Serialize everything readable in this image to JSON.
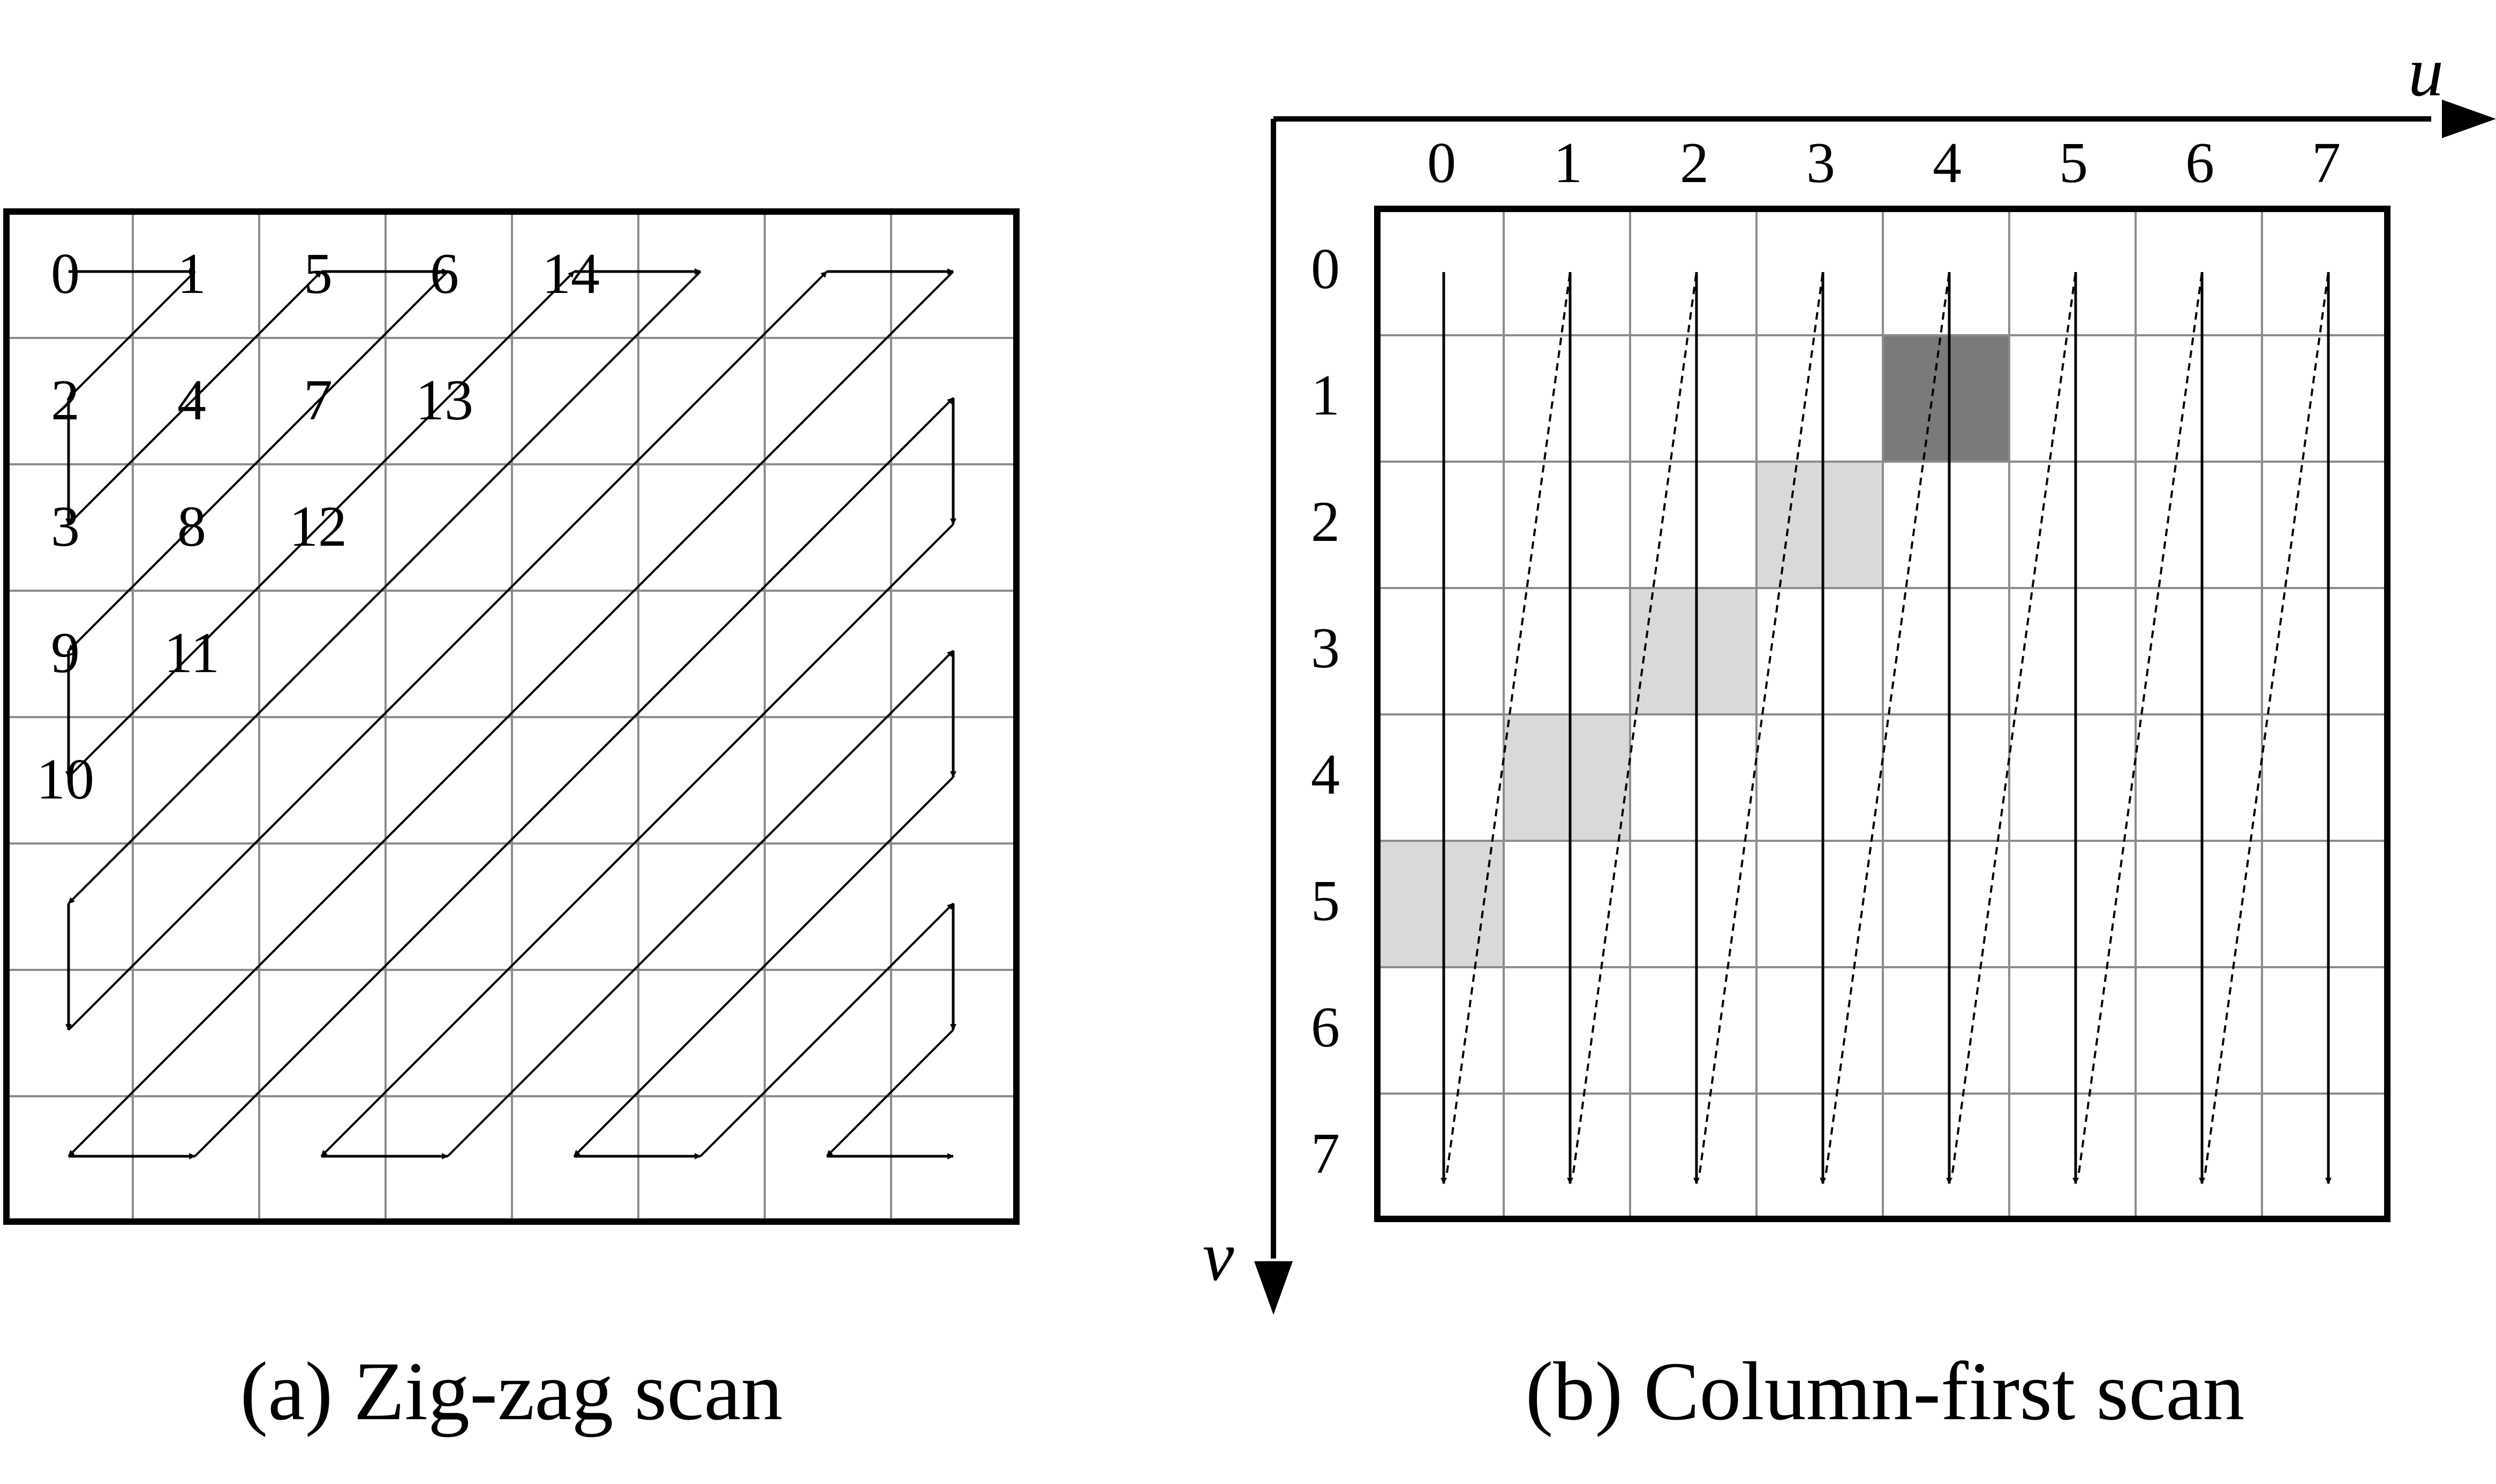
{
  "panel_a": {
    "caption": "(a) Zig-zag scan",
    "grid_size": 8,
    "cell_labels": [
      {
        "text": "0",
        "row": 0,
        "col": 0
      },
      {
        "text": "1",
        "row": 0,
        "col": 1
      },
      {
        "text": "5",
        "row": 0,
        "col": 2
      },
      {
        "text": "6",
        "row": 0,
        "col": 3
      },
      {
        "text": "14",
        "row": 0,
        "col": 4
      },
      {
        "text": "2",
        "row": 1,
        "col": 0
      },
      {
        "text": "4",
        "row": 1,
        "col": 1
      },
      {
        "text": "7",
        "row": 1,
        "col": 2
      },
      {
        "text": "13",
        "row": 1,
        "col": 3
      },
      {
        "text": "3",
        "row": 2,
        "col": 0
      },
      {
        "text": "8",
        "row": 2,
        "col": 1
      },
      {
        "text": "12",
        "row": 2,
        "col": 2
      },
      {
        "text": "9",
        "row": 3,
        "col": 0
      },
      {
        "text": "11",
        "row": 3,
        "col": 1
      },
      {
        "text": "10",
        "row": 4,
        "col": 0
      }
    ]
  },
  "panel_b": {
    "caption": "(b) Column-first scan",
    "axis_u_label": "u",
    "axis_v_label": "v",
    "column_labels": [
      "0",
      "1",
      "2",
      "3",
      "4",
      "5",
      "6",
      "7"
    ],
    "row_labels": [
      "0",
      "1",
      "2",
      "3",
      "4",
      "5",
      "6",
      "7"
    ],
    "highlighted_cells": [
      {
        "row": 1,
        "col": 4,
        "shade": "dark"
      },
      {
        "row": 2,
        "col": 3,
        "shade": "light"
      },
      {
        "row": 3,
        "col": 2,
        "shade": "light"
      },
      {
        "row": 4,
        "col": 1,
        "shade": "light"
      },
      {
        "row": 5,
        "col": 0,
        "shade": "light"
      }
    ]
  },
  "colors": {
    "stroke": "#000000",
    "grid": "#8c8c8c",
    "dark_cell": "#7a7a7a",
    "light_cell": "#d9d9d9"
  }
}
